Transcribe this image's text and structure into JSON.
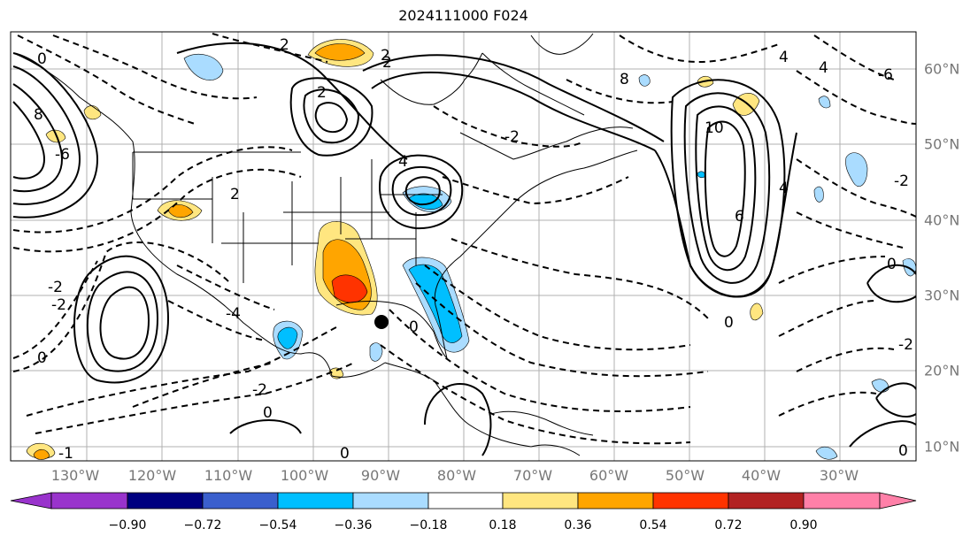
{
  "title": "2024111000 F024",
  "longitude_labels": [
    "130°W",
    "120°W",
    "110°W",
    "100°W",
    "90°W",
    "80°W",
    "70°W",
    "60°W",
    "50°W",
    "40°W",
    "30°W"
  ],
  "latitude_labels": [
    "60°N",
    "50°N",
    "40°N",
    "30°N",
    "20°N",
    "10°N"
  ],
  "colorbar": {
    "tick_labels": [
      "−0.90",
      "−0.72",
      "−0.54",
      "−0.36",
      "−0.18",
      "0.18",
      "0.36",
      "0.54",
      "0.72",
      "0.90"
    ],
    "colors": [
      "#9933cc",
      "#000080",
      "#3a5fcd",
      "#00bfff",
      "#aadcff",
      "#ffffff",
      "#ffe680",
      "#ffa500",
      "#ff3300",
      "#b22222",
      "#ff80a8"
    ]
  },
  "contour_labels": [
    "2",
    "4",
    "-6",
    "-2",
    "-4",
    "8",
    "6",
    "4",
    "2",
    "0",
    "-2",
    "0",
    "2",
    "-2",
    "4",
    "4",
    "0",
    "-2",
    "-6",
    "8",
    "10",
    "2",
    "0",
    "0",
    "-2",
    "0",
    "-2",
    "0",
    "2",
    "-1",
    "0"
  ],
  "marker": "black-dot"
}
